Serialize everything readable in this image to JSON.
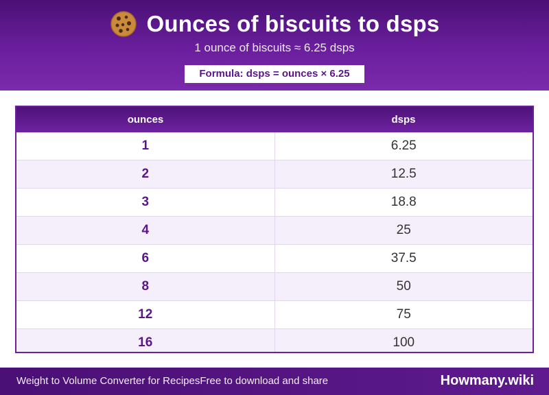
{
  "header": {
    "icon": "cookie-icon",
    "title": "Ounces of biscuits to dsps",
    "subtitle": "1 ounce of biscuits ≈ 6.25 dsps",
    "formula": "Formula: dsps = ounces × 6.25"
  },
  "table": {
    "headers": [
      "ounces",
      "dsps"
    ],
    "rows": [
      [
        "1",
        "6.25"
      ],
      [
        "2",
        "12.5"
      ],
      [
        "3",
        "18.8"
      ],
      [
        "4",
        "25"
      ],
      [
        "6",
        "37.5"
      ],
      [
        "8",
        "50"
      ],
      [
        "12",
        "75"
      ],
      [
        "16",
        "100"
      ]
    ]
  },
  "footer": {
    "left_text_1": "Weight to Volume Converter for Recipes",
    "left_text_2": "Free to download and share",
    "brand": "Howmany.wiki"
  },
  "colors": {
    "header_bg": "#6b1f9e",
    "accent": "#5b1589",
    "row_alt": "#f4effa"
  }
}
